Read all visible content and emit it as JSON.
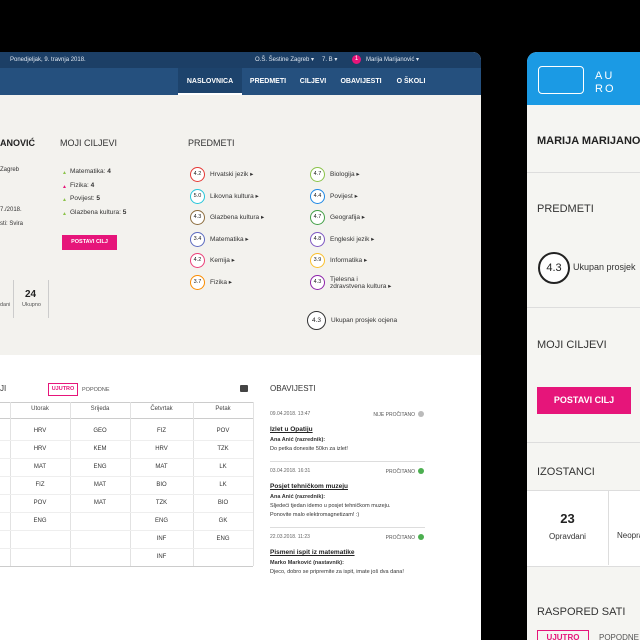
{
  "top_bar": {
    "date": "Ponedjeljak, 9. travnja 2018.",
    "school": "O.Š. Šestine Zagreb ▾",
    "class": "7. B ▾",
    "badge": "1",
    "user": "Marija Marijanović ▾"
  },
  "nav": [
    "NASLOVNICA",
    "PREDMETI",
    "CILJEVI",
    "OBAVIJESTI",
    "O ŠKOLI"
  ],
  "profile": {
    "name": "ANOVIĆ",
    "lines": [
      "Zagreb",
      "7./2018.",
      "sti: Svira"
    ],
    "absences_label": "dani",
    "total": "24",
    "total_label": "Ukupno"
  },
  "goals": {
    "title": "MOJI CILJEVI",
    "items": [
      {
        "subject": "Matematika:",
        "grade": "4"
      },
      {
        "subject": "Fizika:",
        "grade": "4"
      },
      {
        "subject": "Povijest:",
        "grade": "5"
      },
      {
        "subject": "Glazbena kultura:",
        "grade": "5"
      }
    ],
    "button": "POSTAVI CILJ"
  },
  "subjects": {
    "title": "PREDMETI",
    "items": [
      {
        "grade": "4.2",
        "name": "Hrvatski jezik ▸",
        "color": "#e53935"
      },
      {
        "grade": "4.7",
        "name": "Biologija ▸",
        "color": "#8bc34a"
      },
      {
        "grade": "5.0",
        "name": "Likovna kultura ▸",
        "color": "#26c6da"
      },
      {
        "grade": "4.4",
        "name": "Povijest ▸",
        "color": "#1e88e5"
      },
      {
        "grade": "4.3",
        "name": "Glazbena kultura ▸",
        "color": "#8d6e3f"
      },
      {
        "grade": "4.7",
        "name": "Geografija ▸",
        "color": "#43a047"
      },
      {
        "grade": "3.4",
        "name": "Matematika ▸",
        "color": "#5c6bc0"
      },
      {
        "grade": "4.8",
        "name": "Engleski jezik ▸",
        "color": "#7e57c2"
      },
      {
        "grade": "4.2",
        "name": "Kemija ▸",
        "color": "#ec407a"
      },
      {
        "grade": "3.9",
        "name": "Informatika ▸",
        "color": "#fbc02d"
      },
      {
        "grade": "3.7",
        "name": "Fizika ▸",
        "color": "#fb8c00"
      },
      {
        "grade": "4.3",
        "name": "Tjelesna i zdravstvena kultura ▸",
        "color": "#8e24aa"
      }
    ],
    "average": {
      "grade": "4.3",
      "label": "Ukupan prosjek ocjena"
    }
  },
  "schedule": {
    "title": "JI",
    "shifts": [
      "UJUTRO",
      "POPODNE"
    ],
    "days": [
      "Utorak",
      "Srijeda",
      "Četvrtak",
      "Petak"
    ],
    "rows": [
      [
        "HRV",
        "GEO",
        "FIZ",
        "POV"
      ],
      [
        "HRV",
        "KEM",
        "HRV",
        "TZK"
      ],
      [
        "MAT",
        "ENG",
        "MAT",
        "LK"
      ],
      [
        "FIZ",
        "MAT",
        "BIO",
        "LK"
      ],
      [
        "POV",
        "MAT",
        "TZK",
        "BIO"
      ],
      [
        "ENG",
        "",
        "ENG",
        "GK"
      ],
      [
        "",
        "",
        "INF",
        "ENG"
      ],
      [
        "",
        "",
        "INF",
        ""
      ]
    ]
  },
  "notices": {
    "title": "OBAVIJESTI",
    "items": [
      {
        "date": "09.04.2018. 13:47",
        "status": "NIJE PROČITANO",
        "title": "Izlet u Opatiju",
        "author": "Ana Anić (razrednik):",
        "text": [
          "Do petka donesite 50kn za izlet!"
        ]
      },
      {
        "date": "03.04.2018. 16:31",
        "status": "PROČITANO",
        "title": "Posjet tehničkom muzeju",
        "author": "Ana Anić (razrednik):",
        "text": [
          "Sljedeći tjedan idemo u posjet tehničkom muzeju.",
          "Ponovite malo elektromagnetizam! :)"
        ]
      },
      {
        "date": "22.03.2018. 11:23",
        "status": "PROČITANO",
        "title": "Pismeni ispit iz matematike",
        "author": "Marko Marković (nastavnik):",
        "text": [
          "Djeco, dobro se pripremite za ispit, imate još dva dana!"
        ]
      }
    ]
  },
  "mobile": {
    "brand": [
      "AU",
      "RO"
    ],
    "name": "MARIJA MARIJANOVIĆ",
    "subjects_title": "PREDMETI",
    "average": "4.3",
    "average_label": "Ukupan prosjek",
    "goals_title": "MOJI CILJEVI",
    "button": "POSTAVI CILJ",
    "absences_title": "IZOSTANCI",
    "excused": "23",
    "excused_label": "Opravdani",
    "unexcused_label": "Neopravdani",
    "schedule_title": "RASPORED SATI",
    "shifts": [
      "UJUTRO",
      "POPODNE"
    ]
  }
}
